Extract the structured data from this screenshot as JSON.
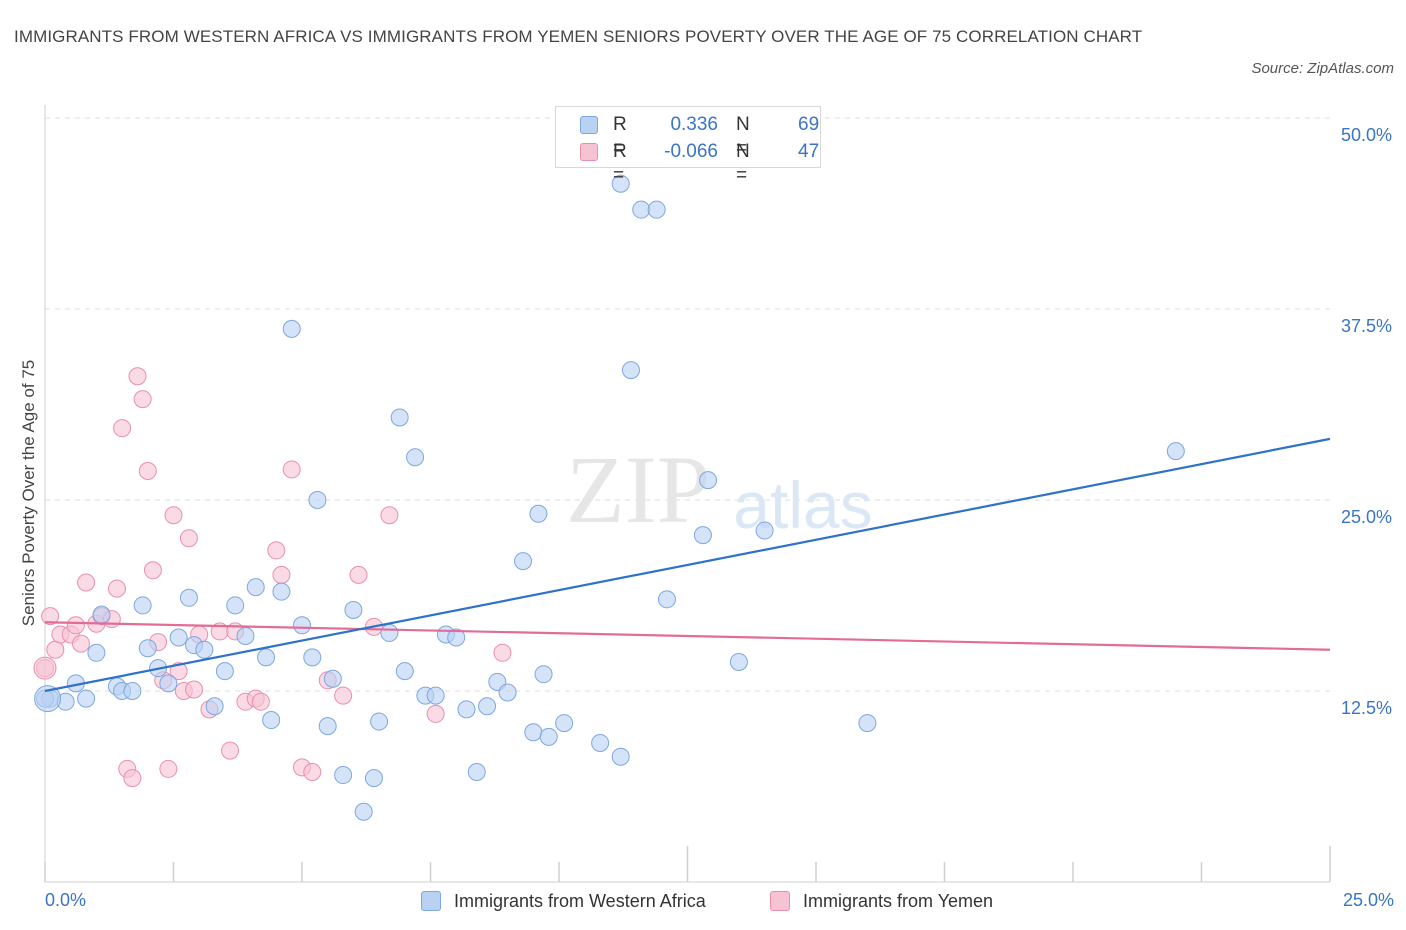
{
  "title": "IMMIGRANTS FROM WESTERN AFRICA VS IMMIGRANTS FROM YEMEN SENIORS POVERTY OVER THE AGE OF 75 CORRELATION CHART",
  "source": "Source: ZipAtlas.com",
  "watermark": {
    "zip": "ZIP",
    "atlas": "atlas"
  },
  "legend": {
    "r_label": "R =",
    "n_label": "N =",
    "series": [
      {
        "r": "0.336",
        "n": "69"
      },
      {
        "r": "-0.066",
        "n": "47"
      }
    ]
  },
  "colors": {
    "blue_fill": "#b9d1f3",
    "blue_stroke": "#7da7e0",
    "blue_line": "#2f72c9",
    "pink_fill": "#f6c3d3",
    "pink_stroke": "#e98fae",
    "pink_line": "#e26c98",
    "accent_text": "#3a74c4"
  },
  "chart_data": {
    "type": "scatter",
    "ylabel": "Seniors Poverty Over the Age of 75",
    "xlim": [
      0,
      25
    ],
    "ylim": [
      0,
      50
    ],
    "x_tick_labels": [
      {
        "value": 0,
        "label": "0.0%"
      },
      {
        "value": 25,
        "label": "25.0%"
      }
    ],
    "y_tick_labels": [
      {
        "value": 12.5,
        "label": "12.5%"
      },
      {
        "value": 25,
        "label": "25.0%"
      },
      {
        "value": 37.5,
        "label": "37.5%"
      },
      {
        "value": 50,
        "label": "50.0%"
      }
    ],
    "grid": true,
    "series": [
      {
        "name": "Immigrants from Western Africa",
        "color": "#b9d1f3",
        "trend": {
          "x": [
            0,
            25
          ],
          "y": [
            12.5,
            29.0
          ]
        },
        "points": [
          [
            0.1,
            12.0
          ],
          [
            0.4,
            11.8
          ],
          [
            0.6,
            13.0
          ],
          [
            0.8,
            12.0
          ],
          [
            1.0,
            15.0
          ],
          [
            1.1,
            17.5
          ],
          [
            1.4,
            12.8
          ],
          [
            1.5,
            12.5
          ],
          [
            1.7,
            12.5
          ],
          [
            1.9,
            18.1
          ],
          [
            2.0,
            15.3
          ],
          [
            2.2,
            14.0
          ],
          [
            2.4,
            13.0
          ],
          [
            2.6,
            16.0
          ],
          [
            2.8,
            18.6
          ],
          [
            2.9,
            15.5
          ],
          [
            3.1,
            15.2
          ],
          [
            3.3,
            11.5
          ],
          [
            3.5,
            13.8
          ],
          [
            3.7,
            18.1
          ],
          [
            3.9,
            16.1
          ],
          [
            4.1,
            19.3
          ],
          [
            4.3,
            14.7
          ],
          [
            4.4,
            10.6
          ],
          [
            4.6,
            19.0
          ],
          [
            4.8,
            36.2
          ],
          [
            5.0,
            16.8
          ],
          [
            5.2,
            14.7
          ],
          [
            5.3,
            25.0
          ],
          [
            5.5,
            10.2
          ],
          [
            5.6,
            13.3
          ],
          [
            5.8,
            7.0
          ],
          [
            6.0,
            17.8
          ],
          [
            6.2,
            4.6
          ],
          [
            6.4,
            6.8
          ],
          [
            6.5,
            10.5
          ],
          [
            6.7,
            16.3
          ],
          [
            6.9,
            30.4
          ],
          [
            7.0,
            13.8
          ],
          [
            7.2,
            27.8
          ],
          [
            7.4,
            12.2
          ],
          [
            7.6,
            12.2
          ],
          [
            7.8,
            16.2
          ],
          [
            8.0,
            16.0
          ],
          [
            8.2,
            11.3
          ],
          [
            8.4,
            7.2
          ],
          [
            8.6,
            11.5
          ],
          [
            8.8,
            13.1
          ],
          [
            9.0,
            12.4
          ],
          [
            9.3,
            21.0
          ],
          [
            9.5,
            9.8
          ],
          [
            9.6,
            24.1
          ],
          [
            9.7,
            13.6
          ],
          [
            9.8,
            9.5
          ],
          [
            10.1,
            10.4
          ],
          [
            10.8,
            9.1
          ],
          [
            11.2,
            8.2
          ],
          [
            11.2,
            45.7
          ],
          [
            11.4,
            33.5
          ],
          [
            11.6,
            44.0
          ],
          [
            11.9,
            44.0
          ],
          [
            12.1,
            18.5
          ],
          [
            12.8,
            22.7
          ],
          [
            12.9,
            26.3
          ],
          [
            13.5,
            14.4
          ],
          [
            14.0,
            23.0
          ],
          [
            16.0,
            10.4
          ],
          [
            22.0,
            28.2
          ],
          [
            0.0,
            12.0
          ]
        ]
      },
      {
        "name": "Immigrants from Yemen",
        "color": "#f6c3d3",
        "trend": {
          "x": [
            0,
            25
          ],
          "y": [
            17.0,
            15.2
          ]
        },
        "points": [
          [
            0.0,
            14.0
          ],
          [
            0.1,
            17.4
          ],
          [
            0.2,
            15.2
          ],
          [
            0.3,
            16.2
          ],
          [
            0.5,
            16.2
          ],
          [
            0.6,
            16.8
          ],
          [
            0.7,
            15.6
          ],
          [
            0.8,
            19.6
          ],
          [
            1.0,
            16.9
          ],
          [
            1.1,
            17.4
          ],
          [
            1.3,
            17.2
          ],
          [
            1.4,
            19.2
          ],
          [
            1.5,
            29.7
          ],
          [
            1.6,
            7.4
          ],
          [
            1.7,
            6.8
          ],
          [
            1.8,
            33.1
          ],
          [
            1.9,
            31.6
          ],
          [
            2.0,
            26.9
          ],
          [
            2.1,
            20.4
          ],
          [
            2.2,
            15.7
          ],
          [
            2.3,
            13.2
          ],
          [
            2.4,
            7.4
          ],
          [
            2.5,
            24.0
          ],
          [
            2.6,
            13.8
          ],
          [
            2.7,
            12.5
          ],
          [
            2.8,
            22.5
          ],
          [
            2.9,
            12.6
          ],
          [
            3.0,
            16.2
          ],
          [
            3.2,
            11.3
          ],
          [
            3.4,
            16.4
          ],
          [
            3.6,
            8.6
          ],
          [
            3.7,
            16.4
          ],
          [
            3.9,
            11.8
          ],
          [
            4.1,
            12.0
          ],
          [
            4.2,
            11.8
          ],
          [
            4.5,
            21.7
          ],
          [
            4.6,
            20.1
          ],
          [
            4.8,
            27.0
          ],
          [
            5.0,
            7.5
          ],
          [
            5.2,
            7.2
          ],
          [
            5.5,
            13.2
          ],
          [
            5.8,
            12.2
          ],
          [
            6.1,
            20.1
          ],
          [
            6.4,
            16.7
          ],
          [
            6.7,
            24.0
          ],
          [
            7.6,
            11.0
          ],
          [
            8.9,
            15.0
          ]
        ]
      }
    ]
  }
}
